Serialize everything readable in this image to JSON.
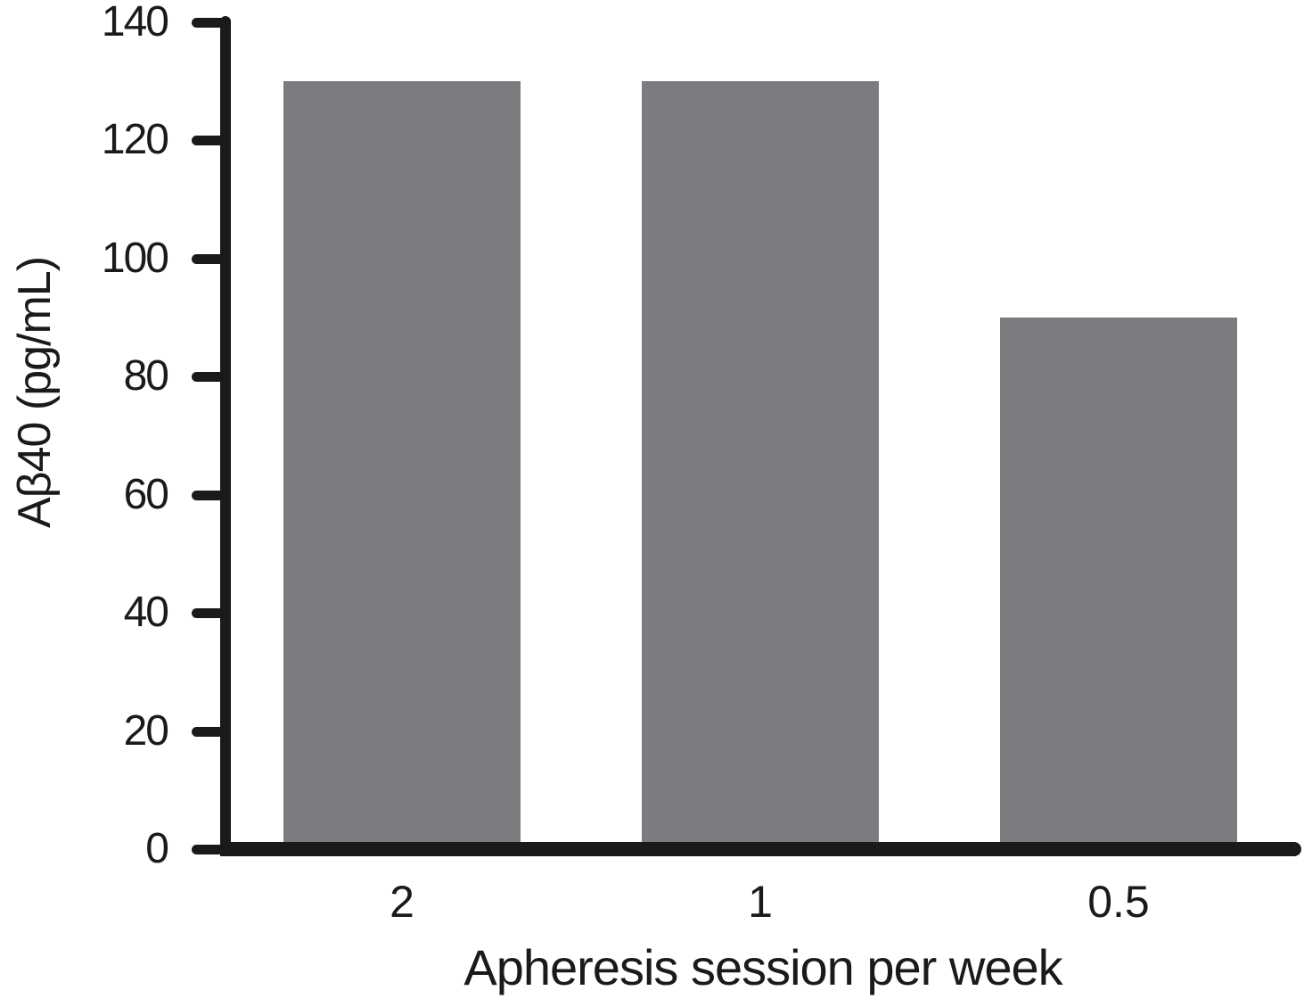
{
  "chart_data": {
    "type": "bar",
    "categories": [
      "2",
      "1",
      "0.5"
    ],
    "values": [
      130,
      130,
      90
    ],
    "title": "",
    "xlabel": "Apheresis session per week",
    "ylabel": "Aβ40 (pg/mL)",
    "ylim": [
      0,
      140
    ],
    "yticks": [
      0,
      20,
      40,
      60,
      80,
      100,
      120,
      140
    ],
    "grid": false,
    "legend": "none",
    "bar_color": "#7b7c80",
    "axis_color": "#1c191a",
    "text_color": "#1c191a",
    "background_color": "#ffffff"
  }
}
